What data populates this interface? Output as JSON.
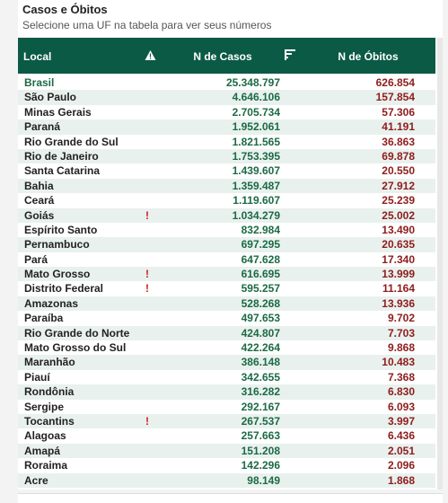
{
  "panel": {
    "title": "Casos e Óbitos",
    "subtitle": "Selecione uma UF na tabela para ver seus números"
  },
  "table": {
    "headers": {
      "local": "Local",
      "casos": "N de Casos",
      "obitos": "N de Óbitos",
      "warning_icon": "warning-triangle-icon",
      "sort_icon": "sort-filter-icon"
    },
    "colors": {
      "header_bg": "#0b5a45",
      "casos": "#1b6a45",
      "obitos": "#8e1c1c",
      "flag": "#cc1f1f"
    },
    "rows": [
      {
        "local": "Brasil",
        "flag": "",
        "casos": "25.348.797",
        "obitos": "626.854"
      },
      {
        "local": "São Paulo",
        "flag": "",
        "casos": "4.646.106",
        "obitos": "157.854"
      },
      {
        "local": "Minas Gerais",
        "flag": "",
        "casos": "2.705.734",
        "obitos": "57.306"
      },
      {
        "local": "Paraná",
        "flag": "",
        "casos": "1.952.061",
        "obitos": "41.191"
      },
      {
        "local": "Rio Grande do Sul",
        "flag": "",
        "casos": "1.821.565",
        "obitos": "36.863"
      },
      {
        "local": "Rio de Janeiro",
        "flag": "",
        "casos": "1.753.395",
        "obitos": "69.878"
      },
      {
        "local": "Santa Catarina",
        "flag": "",
        "casos": "1.439.607",
        "obitos": "20.550"
      },
      {
        "local": "Bahia",
        "flag": "",
        "casos": "1.359.487",
        "obitos": "27.912"
      },
      {
        "local": "Ceará",
        "flag": "",
        "casos": "1.119.607",
        "obitos": "25.239"
      },
      {
        "local": "Goiás",
        "flag": "!",
        "casos": "1.034.279",
        "obitos": "25.002"
      },
      {
        "local": "Espírito Santo",
        "flag": "",
        "casos": "832.984",
        "obitos": "13.490"
      },
      {
        "local": "Pernambuco",
        "flag": "",
        "casos": "697.295",
        "obitos": "20.635"
      },
      {
        "local": "Pará",
        "flag": "",
        "casos": "647.628",
        "obitos": "17.340"
      },
      {
        "local": "Mato Grosso",
        "flag": "!",
        "casos": "616.695",
        "obitos": "13.999"
      },
      {
        "local": "Distrito Federal",
        "flag": "!",
        "casos": "595.257",
        "obitos": "11.164"
      },
      {
        "local": "Amazonas",
        "flag": "",
        "casos": "528.268",
        "obitos": "13.936"
      },
      {
        "local": "Paraíba",
        "flag": "",
        "casos": "497.653",
        "obitos": "9.702"
      },
      {
        "local": "Rio Grande do Norte",
        "flag": "",
        "casos": "424.807",
        "obitos": "7.703"
      },
      {
        "local": "Mato Grosso do Sul",
        "flag": "",
        "casos": "422.264",
        "obitos": "9.868"
      },
      {
        "local": "Maranhão",
        "flag": "",
        "casos": "386.148",
        "obitos": "10.483"
      },
      {
        "local": "Piauí",
        "flag": "",
        "casos": "342.655",
        "obitos": "7.368"
      },
      {
        "local": "Rondônia",
        "flag": "",
        "casos": "316.282",
        "obitos": "6.830"
      },
      {
        "local": "Sergipe",
        "flag": "",
        "casos": "292.167",
        "obitos": "6.093"
      },
      {
        "local": "Tocantins",
        "flag": "!",
        "casos": "267.537",
        "obitos": "3.997"
      },
      {
        "local": "Alagoas",
        "flag": "",
        "casos": "257.663",
        "obitos": "6.436"
      },
      {
        "local": "Amapá",
        "flag": "",
        "casos": "151.208",
        "obitos": "2.051"
      },
      {
        "local": "Roraima",
        "flag": "",
        "casos": "142.296",
        "obitos": "2.096"
      },
      {
        "local": "Acre",
        "flag": "",
        "casos": "98.149",
        "obitos": "1.868"
      }
    ]
  }
}
